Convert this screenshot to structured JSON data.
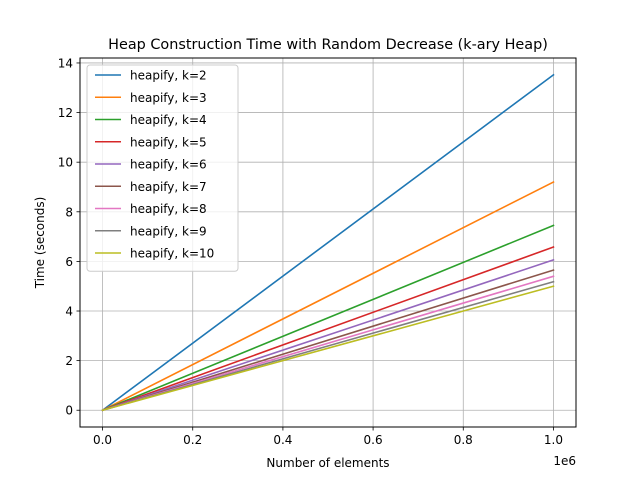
{
  "chart_data": {
    "type": "line",
    "title": "Heap Construction Time with Random Decrease (k-ary Heap)",
    "xlabel": "Number of elements",
    "ylabel": "Time (seconds)",
    "x_offset_label": "1e6",
    "x": [
      0,
      1000000
    ],
    "xlim": [
      -50000,
      1050000
    ],
    "ylim": [
      -0.676,
      14.2
    ],
    "x_ticks": [
      0,
      200000,
      400000,
      600000,
      800000,
      1000000
    ],
    "x_tick_labels": [
      "0.0",
      "0.2",
      "0.4",
      "0.6",
      "0.8",
      "1.0"
    ],
    "y_ticks": [
      0,
      2,
      4,
      6,
      8,
      10,
      12,
      14
    ],
    "y_tick_labels": [
      "0",
      "2",
      "4",
      "6",
      "8",
      "10",
      "12",
      "14"
    ],
    "grid": true,
    "legend_position": "upper-left",
    "series": [
      {
        "name": "heapify, k=2",
        "color": "#1f77b4",
        "values": [
          0,
          13.52
        ]
      },
      {
        "name": "heapify, k=3",
        "color": "#ff7f0e",
        "values": [
          0,
          9.2
        ]
      },
      {
        "name": "heapify, k=4",
        "color": "#2ca02c",
        "values": [
          0,
          7.45
        ]
      },
      {
        "name": "heapify, k=5",
        "color": "#d62728",
        "values": [
          0,
          6.58
        ]
      },
      {
        "name": "heapify, k=6",
        "color": "#9467bd",
        "values": [
          0,
          6.06
        ]
      },
      {
        "name": "heapify, k=7",
        "color": "#8c564b",
        "values": [
          0,
          5.65
        ]
      },
      {
        "name": "heapify, k=8",
        "color": "#e377c2",
        "values": [
          0,
          5.4
        ]
      },
      {
        "name": "heapify, k=9",
        "color": "#7f7f7f",
        "values": [
          0,
          5.18
        ]
      },
      {
        "name": "heapify, k=10",
        "color": "#bcbd22",
        "values": [
          0,
          5.0
        ]
      }
    ]
  }
}
